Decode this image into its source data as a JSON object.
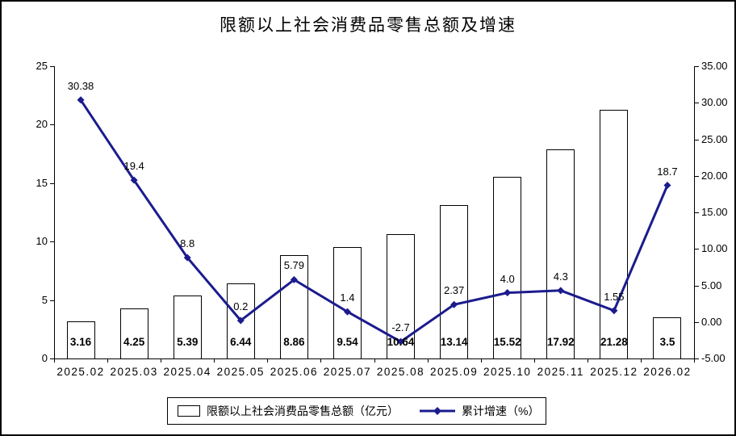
{
  "chart_data": {
    "type": "combo-bar-line",
    "title": "限额以上社会消费品零售总额及增速",
    "categories": [
      "2025.02",
      "2025.03",
      "2025.04",
      "2025.05",
      "2025.06",
      "2025.07",
      "2025.08",
      "2025.09",
      "2025.10",
      "2025.11",
      "2025.12",
      "2026.02"
    ],
    "series": [
      {
        "name": "限额以上社会消费品零售总额（亿元）",
        "type": "bar",
        "axis": "left",
        "fill": "#FFFFFF",
        "border": "#000000",
        "values": [
          3.16,
          4.25,
          5.39,
          6.44,
          8.86,
          9.54,
          10.64,
          13.14,
          15.52,
          17.92,
          21.28,
          3.5
        ],
        "labels": [
          "3.16",
          "4.25",
          "5.39",
          "6.44",
          "8.86",
          "9.54",
          "10.64",
          "13.14",
          "15.52",
          "17.92",
          "21.28",
          "3.5"
        ]
      },
      {
        "name": "累计增速（%）",
        "type": "line",
        "axis": "right",
        "color": "#1B1B8E",
        "marker": "diamond",
        "values": [
          30.38,
          19.4,
          8.8,
          0.2,
          5.79,
          1.4,
          -2.7,
          2.37,
          4.0,
          4.3,
          1.55,
          18.7
        ],
        "labels": [
          "30.38",
          "19.4",
          "8.8",
          "0.2",
          "5.79",
          "1.4",
          "-2.7",
          "2.37",
          "4.0",
          "4.3",
          "1.55",
          "18.7"
        ]
      }
    ],
    "left_axis": {
      "min": 0,
      "max": 25,
      "ticks": [
        0,
        5,
        10,
        15,
        20,
        25
      ],
      "tick_labels": [
        "0",
        "5",
        "10",
        "15",
        "20",
        "25"
      ]
    },
    "right_axis": {
      "min": -5,
      "max": 35,
      "ticks": [
        -5,
        0,
        5,
        10,
        15,
        20,
        25,
        30,
        35
      ],
      "tick_labels": [
        "-5.00",
        "0.00",
        "5.00",
        "10.00",
        "15.00",
        "20.00",
        "25.00",
        "30.00",
        "35.00"
      ]
    },
    "grid": false,
    "legend_position": "bottom"
  }
}
